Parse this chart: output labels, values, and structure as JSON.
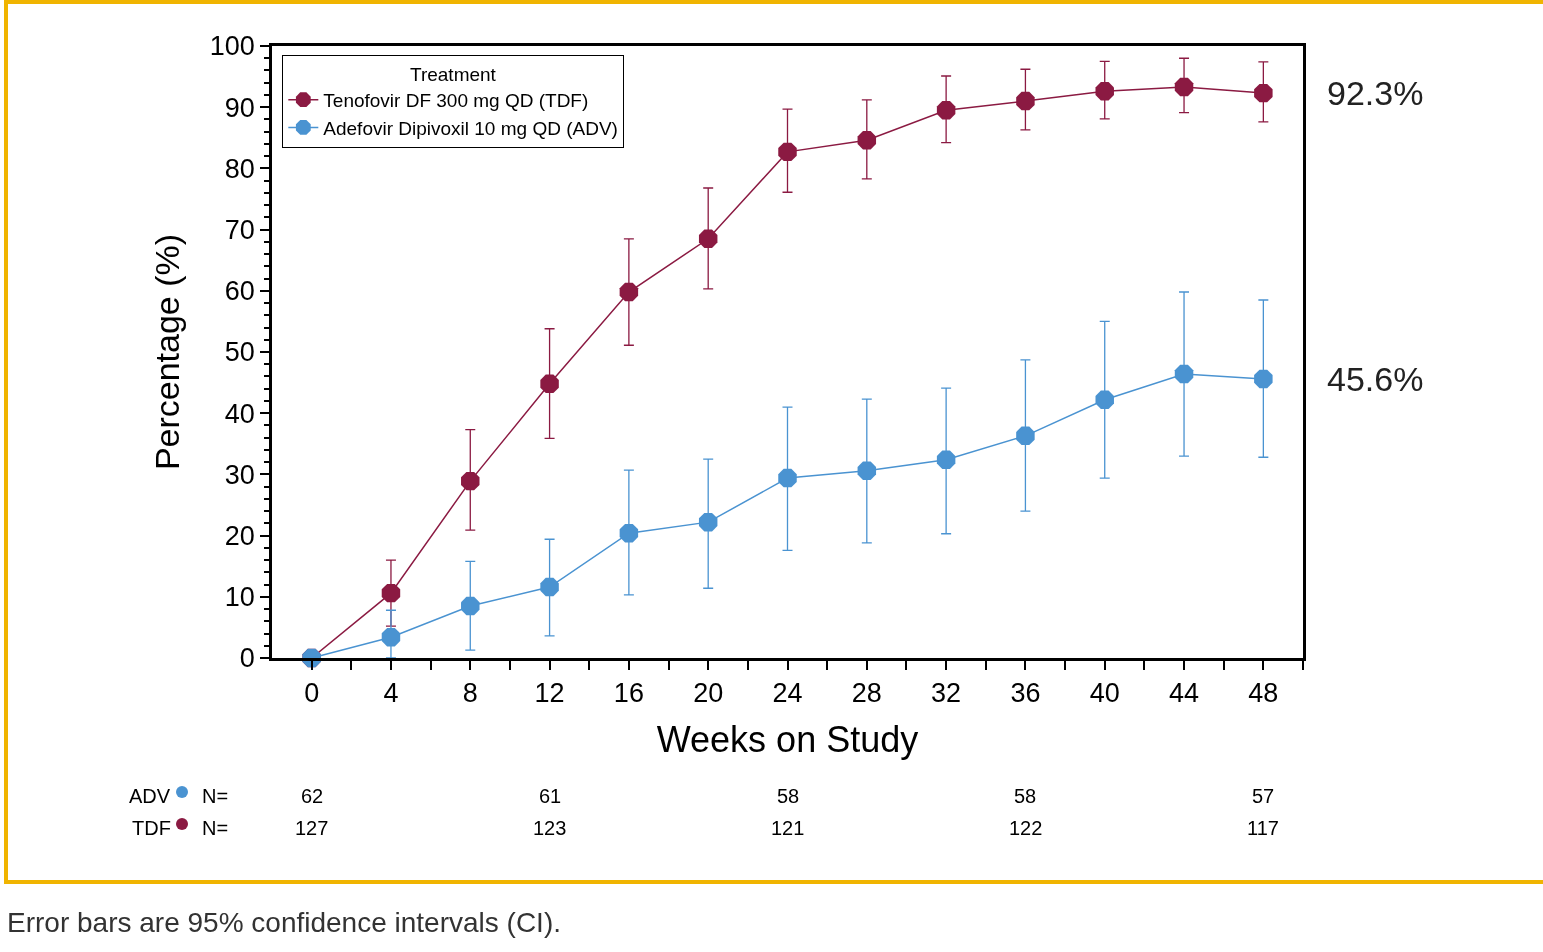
{
  "chart_data": {
    "type": "line",
    "xlabel": "Weeks on Study",
    "ylabel": "Percentage (%)",
    "legend_title": "Treatment",
    "legend": "top left",
    "marker": "circle",
    "line_style": "solid",
    "x": [
      0,
      4,
      8,
      12,
      16,
      20,
      24,
      28,
      32,
      36,
      40,
      44,
      48
    ],
    "xlim": [
      -2,
      50
    ],
    "ylim": [
      0,
      100
    ],
    "xticks": [
      0,
      {
        "value": 2,
        "label": null
      },
      4,
      {
        "value": 6,
        "label": null
      },
      8,
      {
        "value": 10,
        "label": null
      },
      12,
      {
        "value": 14,
        "label": null
      },
      16,
      {
        "value": 18,
        "label": null
      },
      20,
      {
        "value": 22,
        "label": null
      },
      24,
      {
        "value": 26,
        "label": null
      },
      28,
      {
        "value": 30,
        "label": null
      },
      32,
      {
        "value": 34,
        "label": null
      },
      36,
      {
        "value": 38,
        "label": null
      },
      40,
      {
        "value": 42,
        "label": null
      },
      44,
      {
        "value": 46,
        "label": null
      },
      48,
      {
        "value": 50,
        "label": null
      }
    ],
    "yticks": [
      0,
      {
        "value": 2,
        "label": null
      },
      {
        "value": 4,
        "label": null
      },
      {
        "value": 6,
        "label": null
      },
      {
        "value": 8,
        "label": null
      },
      10,
      {
        "value": 12,
        "label": null
      },
      {
        "value": 14,
        "label": null
      },
      {
        "value": 16,
        "label": null
      },
      {
        "value": 18,
        "label": null
      },
      20,
      {
        "value": 22,
        "label": null
      },
      {
        "value": 24,
        "label": null
      },
      {
        "value": 26,
        "label": null
      },
      {
        "value": 28,
        "label": null
      },
      30,
      {
        "value": 32,
        "label": null
      },
      {
        "value": 34,
        "label": null
      },
      {
        "value": 36,
        "label": null
      },
      {
        "value": 38,
        "label": null
      },
      40,
      {
        "value": 42,
        "label": null
      },
      {
        "value": 44,
        "label": null
      },
      {
        "value": 46,
        "label": null
      },
      {
        "value": 48,
        "label": null
      },
      50,
      {
        "value": 52,
        "label": null
      },
      {
        "value": 54,
        "label": null
      },
      {
        "value": 56,
        "label": null
      },
      {
        "value": 58,
        "label": null
      },
      60,
      {
        "value": 62,
        "label": null
      },
      {
        "value": 64,
        "label": null
      },
      {
        "value": 66,
        "label": null
      },
      {
        "value": 68,
        "label": null
      },
      70,
      {
        "value": 72,
        "label": null
      },
      {
        "value": 74,
        "label": null
      },
      {
        "value": 76,
        "label": null
      },
      {
        "value": 78,
        "label": null
      },
      80,
      {
        "value": 82,
        "label": null
      },
      {
        "value": 84,
        "label": null
      },
      {
        "value": 86,
        "label": null
      },
      {
        "value": 88,
        "label": null
      },
      90,
      {
        "value": 92,
        "label": null
      },
      {
        "value": 94,
        "label": null
      },
      {
        "value": 96,
        "label": null
      },
      {
        "value": 98,
        "label": null
      },
      100
    ],
    "series": [
      {
        "name": "Tenofovir DF 300 mg QD (TDF)",
        "color": "#8b1a42",
        "values": [
          0,
          10.6,
          28.9,
          44.8,
          59.8,
          68.5,
          82.7,
          84.6,
          89.5,
          91.0,
          92.6,
          93.3,
          92.3
        ],
        "errors": [
          null,
          [
            5.2,
            16.0
          ],
          [
            20.9,
            37.3
          ],
          [
            35.9,
            53.8
          ],
          [
            51.1,
            68.5
          ],
          [
            60.3,
            76.8
          ],
          [
            76.1,
            89.7
          ],
          [
            78.3,
            91.2
          ],
          [
            84.2,
            95.1
          ],
          [
            86.3,
            96.2
          ],
          [
            88.1,
            97.5
          ],
          [
            89.1,
            98.0
          ],
          [
            87.6,
            97.4
          ]
        ]
      },
      {
        "name": "Adefovir Dipivoxil 10 mg QD (ADV)",
        "color": "#4a93d1",
        "values": [
          0,
          3.4,
          8.5,
          11.6,
          20.4,
          22.2,
          29.4,
          30.6,
          32.4,
          36.3,
          42.2,
          46.4,
          45.6
        ],
        "errors": [
          null,
          [
            0,
            7.8
          ],
          [
            1.3,
            15.8
          ],
          [
            3.6,
            19.4
          ],
          [
            10.3,
            30.7
          ],
          [
            11.4,
            32.5
          ],
          [
            17.6,
            41.0
          ],
          [
            18.8,
            42.3
          ],
          [
            20.3,
            44.1
          ],
          [
            24.0,
            48.7
          ],
          [
            29.4,
            55.0
          ],
          [
            33.0,
            59.8
          ],
          [
            32.8,
            58.5
          ]
        ]
      }
    ],
    "annotations": [
      {
        "text": "92.3%",
        "x": 48,
        "y": 92.3
      },
      {
        "text": "45.6%",
        "x": 48,
        "y": 45.6
      },
      "ADV",
      "N=",
      "TDF",
      "N=",
      "62",
      "61",
      "58",
      "58",
      "57",
      "127",
      "123",
      "121",
      "122",
      "117",
      "Error bars are 95% confidence intervals (CI)."
    ]
  }
}
